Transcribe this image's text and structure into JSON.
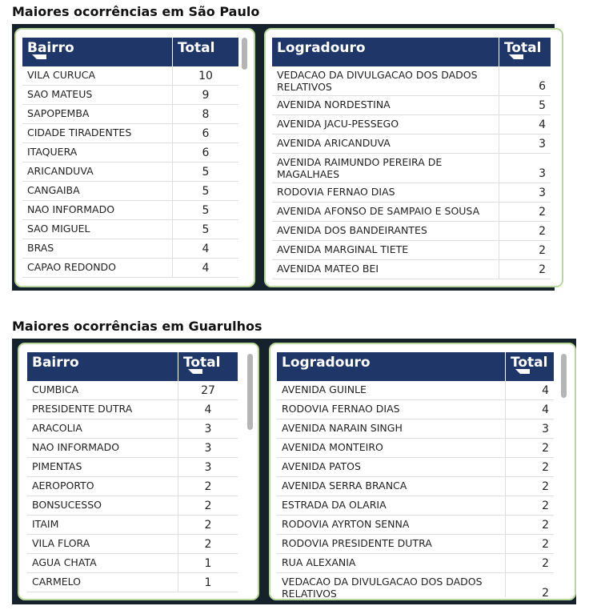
{
  "sections": [
    {
      "title": "Maiores ocorrências em São Paulo",
      "tables": [
        {
          "columns": [
            "Bairro",
            "Total"
          ],
          "rows": [
            [
              "VILA CURUCA",
              10
            ],
            [
              "SAO MATEUS",
              9
            ],
            [
              "SAPOPEMBA",
              8
            ],
            [
              "CIDADE TIRADENTES",
              6
            ],
            [
              "ITAQUERA",
              6
            ],
            [
              "ARICANDUVA",
              5
            ],
            [
              "CANGAIBA",
              5
            ],
            [
              "NAO INFORMADO",
              5
            ],
            [
              "SAO MIGUEL",
              5
            ],
            [
              "BRAS",
              4
            ],
            [
              "CAPAO REDONDO",
              4
            ]
          ]
        },
        {
          "columns": [
            "Logradouro",
            "Total"
          ],
          "rows": [
            [
              "VEDACAO DA DIVULGACAO DOS DADOS RELATIVOS",
              6
            ],
            [
              "AVENIDA NORDESTINA",
              5
            ],
            [
              "AVENIDA JACU-PESSEGO",
              4
            ],
            [
              "AVENIDA ARICANDUVA",
              3
            ],
            [
              "AVENIDA RAIMUNDO PEREIRA DE MAGALHAES",
              3
            ],
            [
              "RODOVIA FERNAO DIAS",
              3
            ],
            [
              "AVENIDA AFONSO DE SAMPAIO E SOUSA",
              2
            ],
            [
              "AVENIDA DOS BANDEIRANTES",
              2
            ],
            [
              "AVENIDA MARGINAL TIETE",
              2
            ],
            [
              "AVENIDA MATEO BEI",
              2
            ]
          ]
        }
      ]
    },
    {
      "title": "Maiores ocorrências em Guarulhos",
      "tables": [
        {
          "columns": [
            "Bairro",
            "Total"
          ],
          "rows": [
            [
              "CUMBICA",
              27
            ],
            [
              "PRESIDENTE DUTRA",
              4
            ],
            [
              "ARACOLIA",
              3
            ],
            [
              "NAO INFORMADO",
              3
            ],
            [
              "PIMENTAS",
              3
            ],
            [
              "AEROPORTO",
              2
            ],
            [
              "BONSUCESSO",
              2
            ],
            [
              "ITAIM",
              2
            ],
            [
              "VILA FLORA",
              2
            ],
            [
              "AGUA CHATA",
              1
            ],
            [
              "CARMELO",
              1
            ]
          ]
        },
        {
          "columns": [
            "Logradouro",
            "Total"
          ],
          "rows": [
            [
              "AVENIDA GUINLE",
              4
            ],
            [
              "RODOVIA FERNAO DIAS",
              4
            ],
            [
              "AVENIDA NARAIN SINGH",
              3
            ],
            [
              "AVENIDA MONTEIRO",
              2
            ],
            [
              "AVENIDA PATOS",
              2
            ],
            [
              "AVENIDA SERRA BRANCA",
              2
            ],
            [
              "ESTRADA DA OLARIA",
              2
            ],
            [
              "RODOVIA AYRTON SENNA",
              2
            ],
            [
              "RODOVIA PRESIDENTE DUTRA",
              2
            ],
            [
              "RUA ALEXANIA",
              2
            ],
            [
              "VEDACAO DA DIVULGACAO DOS DADOS RELATIVOS",
              2
            ]
          ]
        }
      ]
    }
  ]
}
